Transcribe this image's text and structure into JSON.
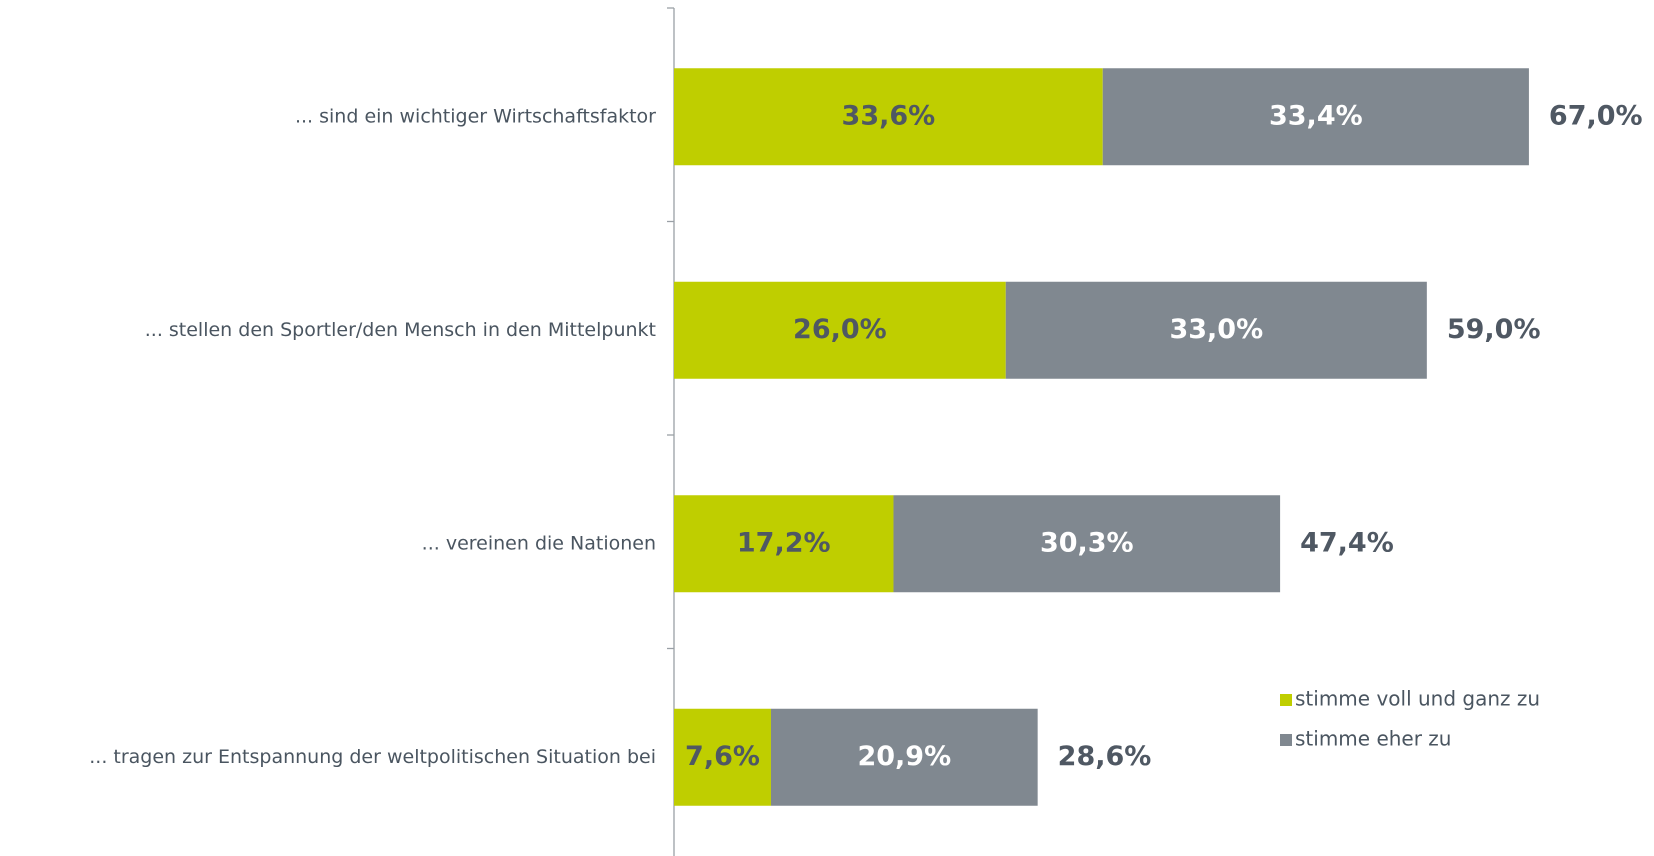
{
  "chart_data": {
    "type": "stacked-bar-horizontal",
    "categories": [
      "... sind ein wichtiger Wirtschaftsfaktor",
      "... stellen den Sportler/den Mensch in den Mittelpunkt",
      "... vereinen die Nationen",
      "... tragen zur Entspannung der weltpolitischen Situation bei"
    ],
    "series": [
      {
        "name": "stimme voll und ganz zu",
        "color": "#bfce00",
        "label_color": "#4f5863",
        "values": [
          33.6,
          26.0,
          17.2,
          7.6
        ],
        "value_labels": [
          "33,6%",
          "26,0%",
          "17,2%",
          "7,6%"
        ]
      },
      {
        "name": "stimme eher zu",
        "color": "#808890",
        "label_color": "#ffffff",
        "values": [
          33.4,
          33.0,
          30.3,
          20.9
        ],
        "value_labels": [
          "33,4%",
          "33,0%",
          "30,3%",
          "20,9%"
        ]
      }
    ],
    "totals": [
      67.0,
      59.0,
      47.4,
      28.6
    ],
    "total_labels": [
      "67,0%",
      "59,0%",
      "47,4%",
      "28,6%"
    ]
  }
}
